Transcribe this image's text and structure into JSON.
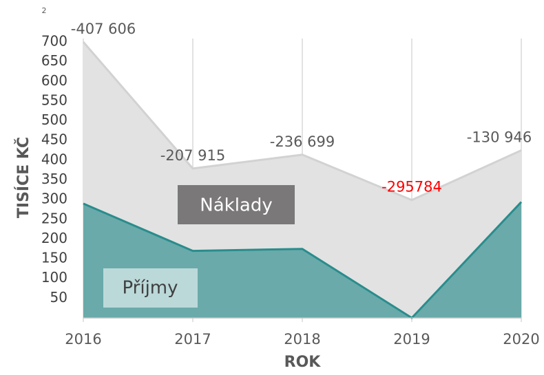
{
  "chart_data": {
    "type": "area",
    "page_label": "2",
    "xlabel": "ROK",
    "ylabel": "TISÍCE KČ",
    "categories": [
      "2016",
      "2017",
      "2018",
      "2019",
      "2020"
    ],
    "series": [
      {
        "name": "Náklady",
        "color": "#e2e2e2",
        "values": [
          700,
          379,
          414,
          299,
          425
        ]
      },
      {
        "name": "Příjmy",
        "color": "#2a8c8c",
        "values": [
          290,
          170,
          175,
          0,
          294
        ]
      }
    ],
    "annotations": [
      "-407 606",
      "-207 915",
      "-236 699",
      "-295784",
      "-130 946"
    ],
    "annotation_colors": [
      "#595959",
      "#595959",
      "#595959",
      "#ff0000",
      "#595959"
    ],
    "ylim": [
      0,
      700
    ],
    "yticks": [
      50,
      100,
      150,
      200,
      250,
      300,
      350,
      400,
      450,
      500,
      550,
      600,
      650,
      700
    ],
    "grid": "vertical"
  }
}
